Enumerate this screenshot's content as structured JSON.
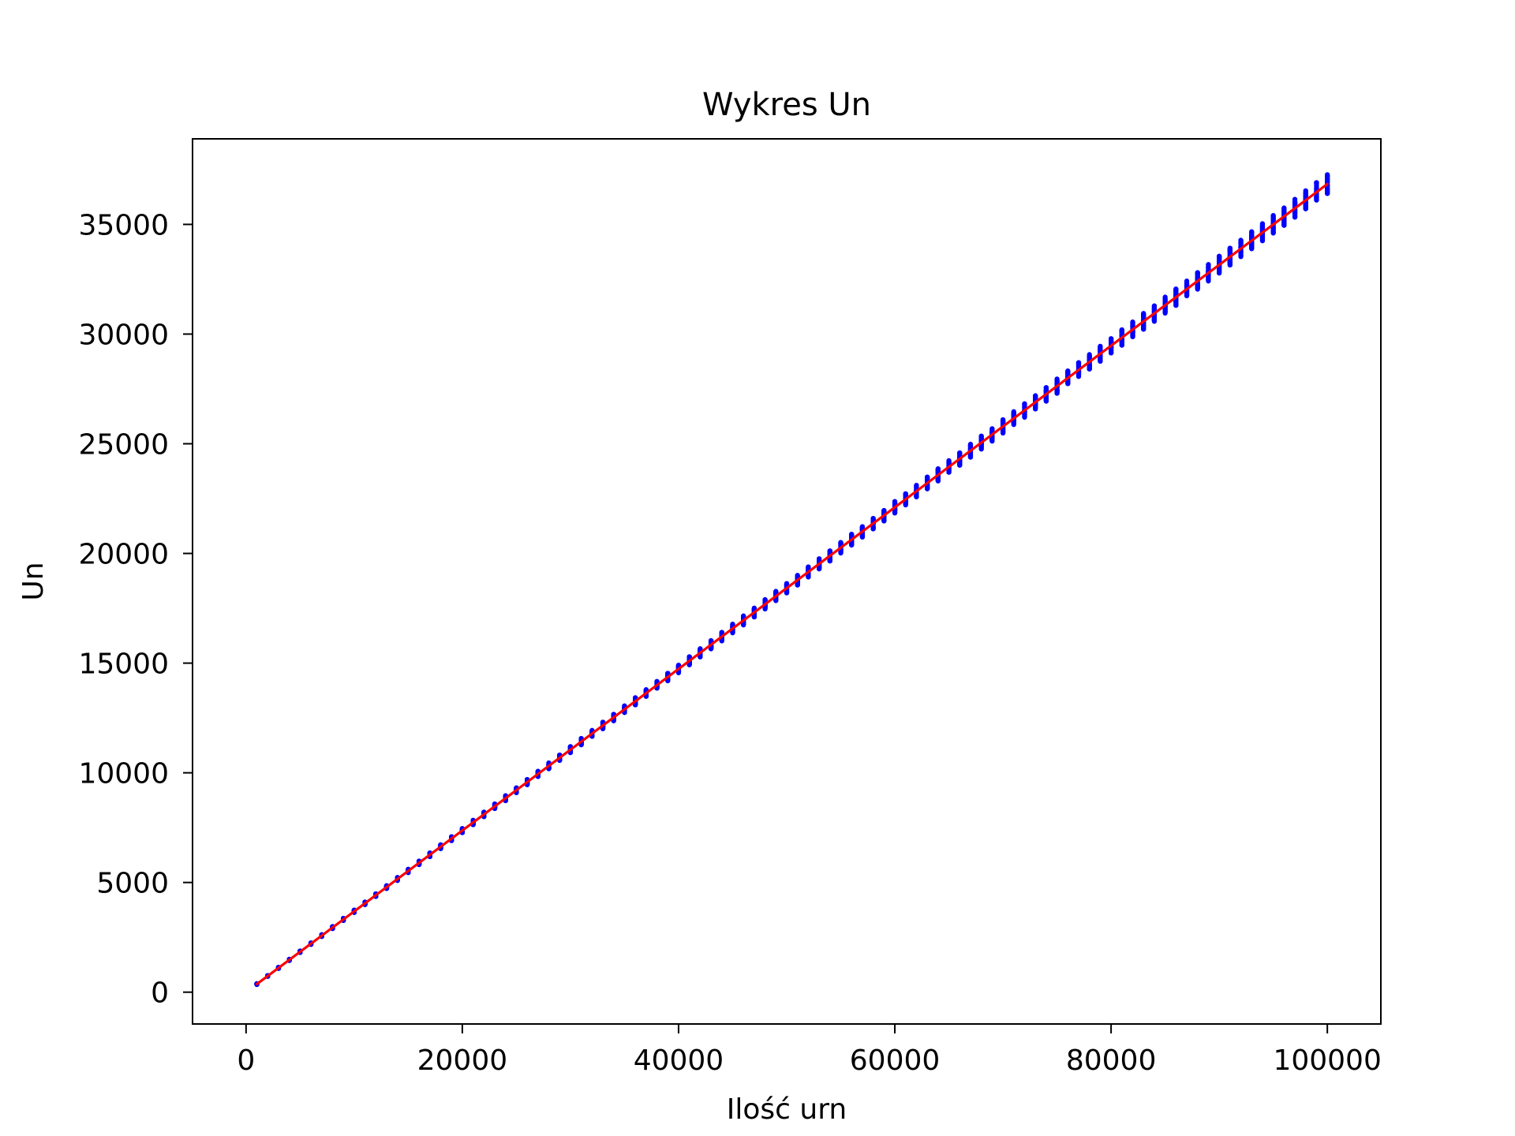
{
  "chart_data": {
    "type": "scatter",
    "title": "Wykres Un",
    "xlabel": "Ilość urn",
    "ylabel": "Un",
    "xlim": [
      -4950,
      104950
    ],
    "ylim": [
      -1450,
      38900
    ],
    "x_ticks": [
      0,
      20000,
      40000,
      60000,
      80000,
      100000
    ],
    "y_ticks": [
      0,
      5000,
      10000,
      15000,
      20000,
      25000,
      30000,
      35000
    ],
    "x_tick_labels": [
      "0",
      "20000",
      "40000",
      "60000",
      "80000",
      "100000"
    ],
    "y_tick_labels": [
      "0",
      "5000",
      "10000",
      "15000",
      "20000",
      "25000",
      "30000",
      "35000"
    ],
    "grid": false,
    "legend": "none",
    "series": [
      {
        "kind": "points",
        "color": "#0000ff",
        "marker": "dot",
        "x_start": 1000,
        "x_end": 100000,
        "x_step": 1000,
        "samples_per_x": 50,
        "approx_slope": 0.3684,
        "approx_intercept": 0,
        "spread_low": 36200,
        "spread_high": 37050,
        "spread_at_x": 100000,
        "first_point": [
          1000,
          370
        ],
        "last_point_range": [
          36200,
          37050
        ]
      },
      {
        "kind": "line",
        "color": "#ff0000",
        "points": [
          [
            1000,
            368
          ],
          [
            100000,
            36840
          ]
        ]
      }
    ]
  }
}
